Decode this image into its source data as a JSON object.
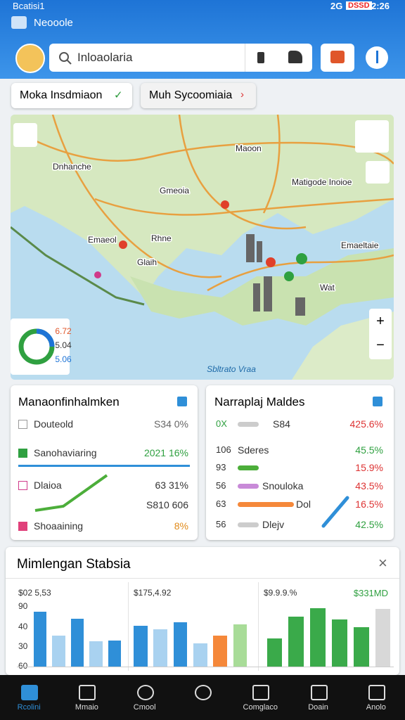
{
  "status_bar": {
    "left": "Bcatisi1",
    "signal": "2G",
    "badge": "DSSD",
    "time": "2:26"
  },
  "app_bar": {
    "title": "Neooole"
  },
  "search": {
    "placeholder": "Inloaolaria"
  },
  "chips": [
    "Moka Insdmiaon",
    "Muh Sycoomiaia"
  ],
  "map": {
    "labels": [
      "Dnhanche",
      "Maoon",
      "Matigode Inoioe",
      "Gmeoia",
      "Emaeol",
      "Rhne",
      "Glaih",
      "Emaeltaie",
      "Wat"
    ],
    "stats": [
      "6.72",
      "5.04",
      "5.06"
    ],
    "attribution": "Sbltrato Vraa"
  },
  "left_card": {
    "title": "Manaonfinhalmken",
    "rows": [
      {
        "label": "Douteold",
        "value": "S34 0%"
      },
      {
        "label": "Sanohaviaring",
        "value": "2021 16%"
      },
      {
        "label": "Dlaioa",
        "value": "63 31%"
      },
      {
        "label": "",
        "value": "S810 606"
      },
      {
        "label": "Shoaaining",
        "value": "8%"
      }
    ]
  },
  "right_card": {
    "title": "Narraplaj Maldes",
    "rows": [
      {
        "num": "0X",
        "label": "S84",
        "value": "425.6%"
      },
      {
        "num": "106",
        "label": "Sderes",
        "value": "45.5%"
      },
      {
        "num": "93",
        "label": "",
        "value": "15.9%"
      },
      {
        "num": "56",
        "label": "Snouloka",
        "value": "43.5%"
      },
      {
        "num": "63",
        "label": "Dol",
        "value": "16.5%"
      },
      {
        "num": "56",
        "label": "Dlejv",
        "value": "42.5%"
      }
    ]
  },
  "sheet": {
    "title": "Mimlengan Stabsia",
    "y_labels": [
      "90",
      "40",
      "30",
      "60"
    ],
    "charts": [
      {
        "header": "$02 5,53",
        "bars": [
          {
            "value": 78,
            "color": "#2f8fd8"
          },
          {
            "value": 44,
            "color": "#a9d2f0"
          },
          {
            "value": 68,
            "color": "#2f8fd8"
          },
          {
            "value": 36,
            "color": "#a9d2f0"
          },
          {
            "value": 37,
            "color": "#2f8fd8"
          }
        ]
      },
      {
        "header": "$175,4.92",
        "bars": [
          {
            "value": 58,
            "color": "#2f8fd8"
          },
          {
            "value": 53,
            "color": "#a9d2f0"
          },
          {
            "value": 63,
            "color": "#2f8fd8"
          },
          {
            "value": 33,
            "color": "#a9d2f0"
          },
          {
            "value": 44,
            "color": "#f5883a"
          },
          {
            "value": 60,
            "color": "#a8dc98"
          }
        ]
      },
      {
        "header": "$9.9.9.%",
        "header2": "$331MD",
        "bars": [
          {
            "value": 40,
            "color": "#3aaa4a"
          },
          {
            "value": 71,
            "color": "#3aaa4a"
          },
          {
            "value": 83,
            "color": "#3aaa4a"
          },
          {
            "value": 67,
            "color": "#3aaa4a"
          },
          {
            "value": 56,
            "color": "#3aaa4a"
          },
          {
            "value": 82,
            "color": "#d8d8d8"
          }
        ]
      }
    ]
  },
  "nav": [
    "Rcolini",
    "Mmaio",
    "Cmool",
    "",
    "Comglaco",
    "Doain",
    "Anolo"
  ]
}
